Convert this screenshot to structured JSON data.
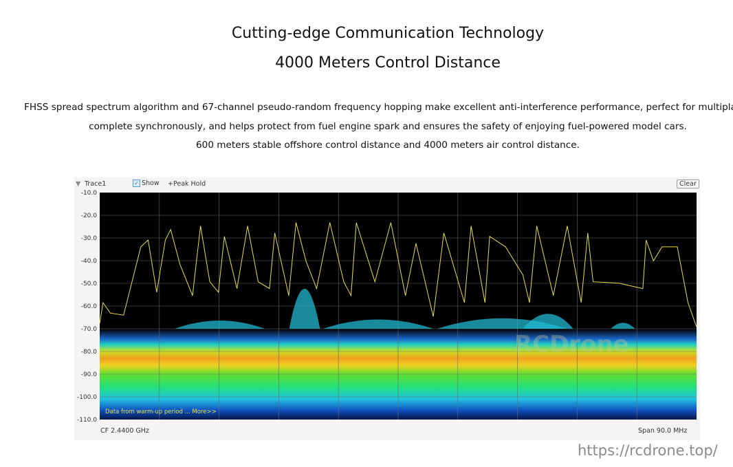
{
  "heading": {
    "title": "Cutting-edge Communication Technology",
    "subtitle": "4000 Meters Control Distance"
  },
  "description": [
    "FHSS spread spectrum algorithm and 67-channel pseudo-random frequency hopping make excellent anti-interference performance, perfect for multiplayer",
    "complete synchronously, and helps protect from fuel engine spark and ensures the safety of enjoying fuel-powered model cars.",
    "600 meters stable offshore control distance and 4000 meters air control distance."
  ],
  "analyzer": {
    "trace_label": "Trace1",
    "show_label": "Show",
    "show_checked": true,
    "peak_hold_label": "+Peak Hold",
    "clear_label": "Clear",
    "warmup_note": "Data from warm-up period ... More>>",
    "cf_label": "CF  2.4400 GHz",
    "span_label": "Span  90.0 MHz",
    "chart_watermark": "RCDrone"
  },
  "watermark": "https://rcdrone.top/",
  "colors": {
    "trace": "#e6e04a",
    "plot_bg": "#000000",
    "grid": "#6a6a6a",
    "note": "#e0e040"
  },
  "chart_data": {
    "type": "line",
    "title": "",
    "xlabel": "",
    "ylabel": "",
    "x_unit": "MHz",
    "xlim": [
      2395,
      2485
    ],
    "ylim": [
      -110,
      -10
    ],
    "yticks": [
      "-10.0",
      "-20.0",
      "-30.0",
      "-40.0",
      "-50.0",
      "-60.0",
      "-70.0",
      "-80.0",
      "-90.0",
      "-100.0",
      "-110.0"
    ],
    "grid": true,
    "series": [
      {
        "x": [
          2395.0,
          2395.5,
          2396.6,
          2398.6,
          2401.2,
          2402.3,
          2403.6,
          2404.9,
          2405.7,
          2407.1,
          2409.0,
          2410.2,
          2411.6,
          2412.9,
          2413.8,
          2415.7,
          2417.3,
          2418.9,
          2420.6,
          2421.4,
          2423.5,
          2424.6,
          2426.1,
          2427.7,
          2429.7,
          2431.8,
          2432.9,
          2433.7,
          2436.5,
          2438.9,
          2441.1,
          2442.7,
          2445.3,
          2446.9,
          2450.0,
          2451.0,
          2453.1,
          2453.8,
          2456.2,
          2458.8,
          2459.8,
          2460.9,
          2463.4,
          2465.5,
          2467.6,
          2468.6,
          2469.4,
          2473.3,
          2476.9,
          2477.4,
          2478.5,
          2479.8,
          2482.1,
          2483.7,
          2485.0
        ],
        "y": [
          -67.7,
          -58.5,
          -63.1,
          -64.0,
          -33.9,
          -30.9,
          -53.9,
          -30.9,
          -26.3,
          -41.6,
          -55.4,
          -24.7,
          -49.3,
          -53.9,
          -29.3,
          -52.3,
          -24.7,
          -49.3,
          -52.3,
          -27.8,
          -55.4,
          -23.2,
          -40.1,
          -52.3,
          -23.2,
          -49.3,
          -55.4,
          -23.2,
          -49.3,
          -23.2,
          -55.4,
          -32.4,
          -64.6,
          -27.8,
          -58.5,
          -24.7,
          -58.5,
          -29.3,
          -33.9,
          -46.2,
          -58.5,
          -24.7,
          -55.4,
          -24.7,
          -58.5,
          -27.8,
          -49.3,
          -49.9,
          -52.3,
          -30.9,
          -40.1,
          -33.9,
          -33.9,
          -58.5,
          -69.2
        ]
      }
    ]
  }
}
